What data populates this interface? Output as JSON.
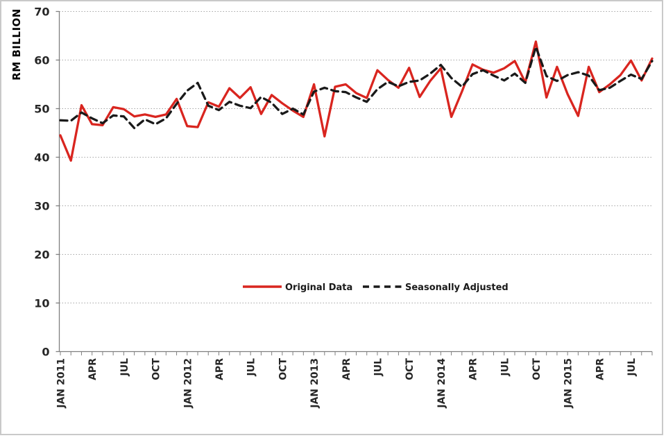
{
  "window": {
    "background": "#ffffff",
    "border_color": "#c9c9c9"
  },
  "chart_data": {
    "type": "line",
    "title": "",
    "ylabel": "RM BILLION",
    "xlabel": "",
    "ylim": [
      0,
      70
    ],
    "y_ticks": [
      0,
      10,
      20,
      30,
      40,
      50,
      60,
      70
    ],
    "grid": "horizontal-dotted",
    "grid_color": "#a6a6a6",
    "axis_color": "#7f7f7f",
    "legend_position": "inside-bottom-center",
    "x_axis": {
      "total_points": 57,
      "label_step": 3,
      "labels": [
        "JAN 2011",
        "APR",
        "JUL",
        "OCT",
        "JAN 2012",
        "APR",
        "JUL",
        "OCT",
        "JAN 2013",
        "APR",
        "JUL",
        "OCT",
        "JAN 2014",
        "APR",
        "JUL",
        "OCT",
        "JAN 2015",
        "APR",
        "JUL"
      ]
    },
    "series": [
      {
        "name": "Original Data",
        "style": "solid",
        "color": "#d9251f",
        "values": [
          44.5,
          39.3,
          50.7,
          46.8,
          46.6,
          50.3,
          49.9,
          48.4,
          48.8,
          48.3,
          48.8,
          52.0,
          46.4,
          46.2,
          51.3,
          50.4,
          54.2,
          52.2,
          54.4,
          48.9,
          52.8,
          51.1,
          49.6,
          48.3,
          55.0,
          44.3,
          54.5,
          55.0,
          53.2,
          52.2,
          57.9,
          55.9,
          54.3,
          58.4,
          52.4,
          55.7,
          58.3,
          48.3,
          53.5,
          59.1,
          58.0,
          57.4,
          58.3,
          59.8,
          55.4,
          63.8,
          52.3,
          58.6,
          53.0,
          48.5,
          58.6,
          53.4,
          55.0,
          56.9,
          59.9,
          55.8,
          60.3
        ]
      },
      {
        "name": "Seasonally Adjusted",
        "style": "dashed",
        "color": "#1a1a1a",
        "values": [
          47.6,
          47.5,
          49.2,
          48.0,
          47.0,
          48.6,
          48.4,
          46.0,
          47.8,
          46.8,
          48.0,
          51.0,
          53.7,
          55.3,
          50.6,
          49.7,
          51.4,
          50.6,
          50.1,
          52.4,
          51.2,
          48.9,
          50.0,
          48.8,
          53.5,
          54.3,
          53.6,
          53.4,
          52.3,
          51.4,
          54.0,
          55.5,
          54.6,
          55.5,
          55.8,
          57.2,
          59.0,
          56.3,
          54.5,
          57.1,
          57.9,
          56.8,
          55.8,
          57.2,
          55.3,
          62.7,
          56.7,
          55.7,
          56.9,
          57.5,
          56.8,
          53.8,
          54.3,
          55.7,
          57.0,
          56.1,
          59.8
        ]
      }
    ]
  },
  "legend": [
    {
      "label": "Original Data"
    },
    {
      "label": "Seasonally Adjusted"
    }
  ]
}
